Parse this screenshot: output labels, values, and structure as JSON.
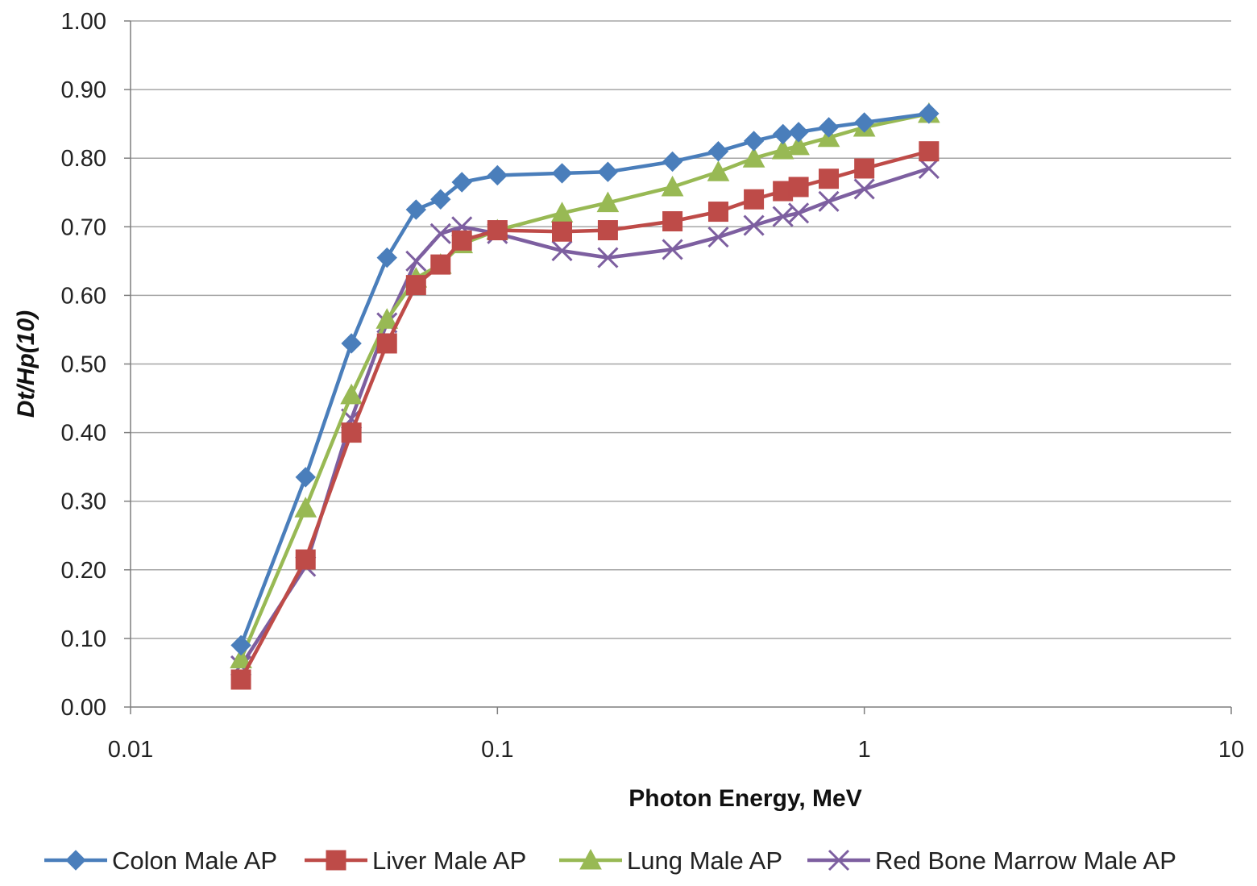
{
  "chart_data": {
    "type": "line",
    "title": "",
    "xlabel": "Photon Energy, MeV",
    "ylabel": "Dt/Hp(10)",
    "x_scale": "log",
    "xlim": [
      0.01,
      10
    ],
    "ylim": [
      0,
      1.0
    ],
    "x_ticks": [
      "0.01",
      "0.1",
      "1",
      "10"
    ],
    "y_ticks": [
      "0.00",
      "0.10",
      "0.20",
      "0.30",
      "0.40",
      "0.50",
      "0.60",
      "0.70",
      "0.80",
      "0.90",
      "1.00"
    ],
    "grid": "horizontal",
    "legend_position": "bottom",
    "x": [
      0.02,
      0.03,
      0.04,
      0.05,
      0.06,
      0.07,
      0.08,
      0.1,
      0.15,
      0.2,
      0.3,
      0.4,
      0.5,
      0.6,
      0.662,
      0.8,
      1.0,
      1.5
    ],
    "series": [
      {
        "name": "Colon Male AP",
        "color": "#4a7ebb",
        "marker": "diamond",
        "values": [
          0.09,
          0.335,
          0.53,
          0.655,
          0.725,
          0.74,
          0.765,
          0.775,
          0.778,
          0.78,
          0.795,
          0.81,
          0.825,
          0.835,
          0.838,
          0.845,
          0.852,
          0.865
        ]
      },
      {
        "name": "Liver Male AP",
        "color": "#be4b48",
        "marker": "square",
        "values": [
          0.04,
          0.215,
          0.4,
          0.53,
          0.615,
          0.645,
          0.68,
          0.695,
          0.693,
          0.695,
          0.708,
          0.722,
          0.74,
          0.752,
          0.758,
          0.77,
          0.785,
          0.81
        ]
      },
      {
        "name": "Lung Male AP",
        "color": "#98b954",
        "marker": "triangle",
        "values": [
          0.07,
          0.29,
          0.455,
          0.565,
          0.625,
          0.645,
          0.675,
          0.695,
          0.72,
          0.735,
          0.758,
          0.78,
          0.8,
          0.812,
          0.818,
          0.83,
          0.845,
          0.865
        ]
      },
      {
        "name": "Red Bone Marrow Male AP",
        "color": "#7d5fa0",
        "marker": "x",
        "values": [
          0.06,
          0.205,
          0.42,
          0.56,
          0.65,
          0.69,
          0.7,
          0.69,
          0.665,
          0.655,
          0.667,
          0.685,
          0.702,
          0.715,
          0.72,
          0.737,
          0.755,
          0.785
        ]
      }
    ]
  }
}
